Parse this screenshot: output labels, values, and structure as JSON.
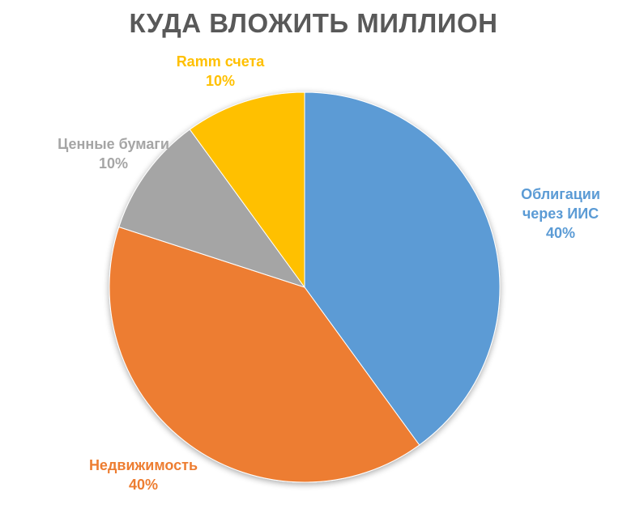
{
  "chart_data": {
    "type": "pie",
    "title": "КУДА ВЛОЖИТЬ МИЛЛИОН",
    "categories": [
      "Облигации через ИИС",
      "Недвижимость",
      "Ценные бумаги",
      "Ramm счета"
    ],
    "values": [
      40,
      40,
      10,
      10
    ],
    "unit": "%",
    "colors": [
      "#5b9bd5",
      "#ed7d31",
      "#a5a5a5",
      "#ffc000"
    ],
    "start_angle_deg": 0,
    "direction": "clockwise",
    "legend": "none (data labels on outside)"
  },
  "labels": {
    "blue": {
      "line1": "Облигации",
      "line2": "через ИИС",
      "pct": "40%"
    },
    "orange": {
      "line1": "Недвижимость",
      "pct": "40%"
    },
    "gray": {
      "line1": "Ценные бумаги",
      "pct": "10%"
    },
    "yellow": {
      "line1": "Ramm счета",
      "pct": "10%"
    }
  }
}
